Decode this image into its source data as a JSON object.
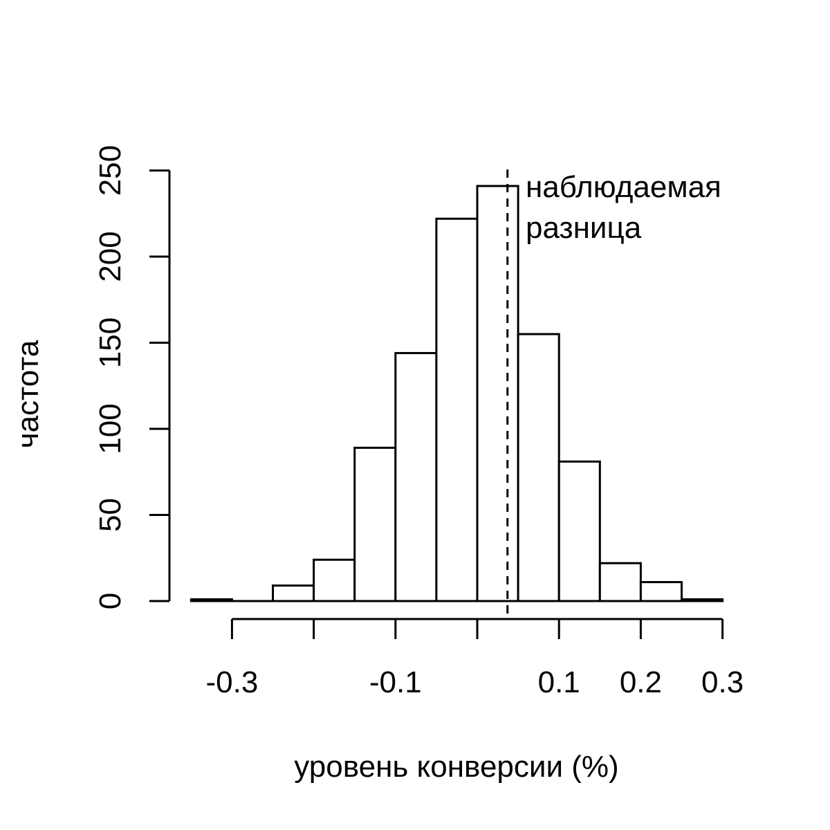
{
  "chart_data": {
    "type": "bar",
    "title": "",
    "xlabel": "уровень конверсии (%)",
    "ylabel": "частота",
    "xlim": [
      -0.35,
      0.3
    ],
    "ylim": [
      0,
      250
    ],
    "bin_width": 0.05,
    "bins": [
      {
        "x0": -0.35,
        "x1": -0.3,
        "value": 1
      },
      {
        "x0": -0.3,
        "x1": -0.25,
        "value": 0
      },
      {
        "x0": -0.25,
        "x1": -0.2,
        "value": 9
      },
      {
        "x0": -0.2,
        "x1": -0.15,
        "value": 24
      },
      {
        "x0": -0.15,
        "x1": -0.1,
        "value": 89
      },
      {
        "x0": -0.1,
        "x1": -0.05,
        "value": 144
      },
      {
        "x0": -0.05,
        "x1": 0.0,
        "value": 222
      },
      {
        "x0": 0.0,
        "x1": 0.05,
        "value": 241
      },
      {
        "x0": 0.05,
        "x1": 0.1,
        "value": 155
      },
      {
        "x0": 0.1,
        "x1": 0.15,
        "value": 81
      },
      {
        "x0": 0.15,
        "x1": 0.2,
        "value": 22
      },
      {
        "x0": 0.2,
        "x1": 0.25,
        "value": 11
      },
      {
        "x0": 0.25,
        "x1": 0.3,
        "value": 1
      }
    ],
    "x_ticks": [
      -0.3,
      -0.2,
      -0.1,
      0.0,
      0.1,
      0.2,
      0.3
    ],
    "x_tick_labels": [
      "-0.3",
      "",
      "-0.1",
      "",
      "0.1",
      "0.2",
      "0.3"
    ],
    "y_ticks": [
      0,
      50,
      100,
      150,
      200,
      250
    ],
    "y_tick_labels": [
      "0",
      "50",
      "100",
      "150",
      "200",
      "250"
    ],
    "observed_difference": 0.037,
    "annotation_lines": [
      "наблюдаемая",
      "разница"
    ],
    "grid": false,
    "legend": "none"
  }
}
